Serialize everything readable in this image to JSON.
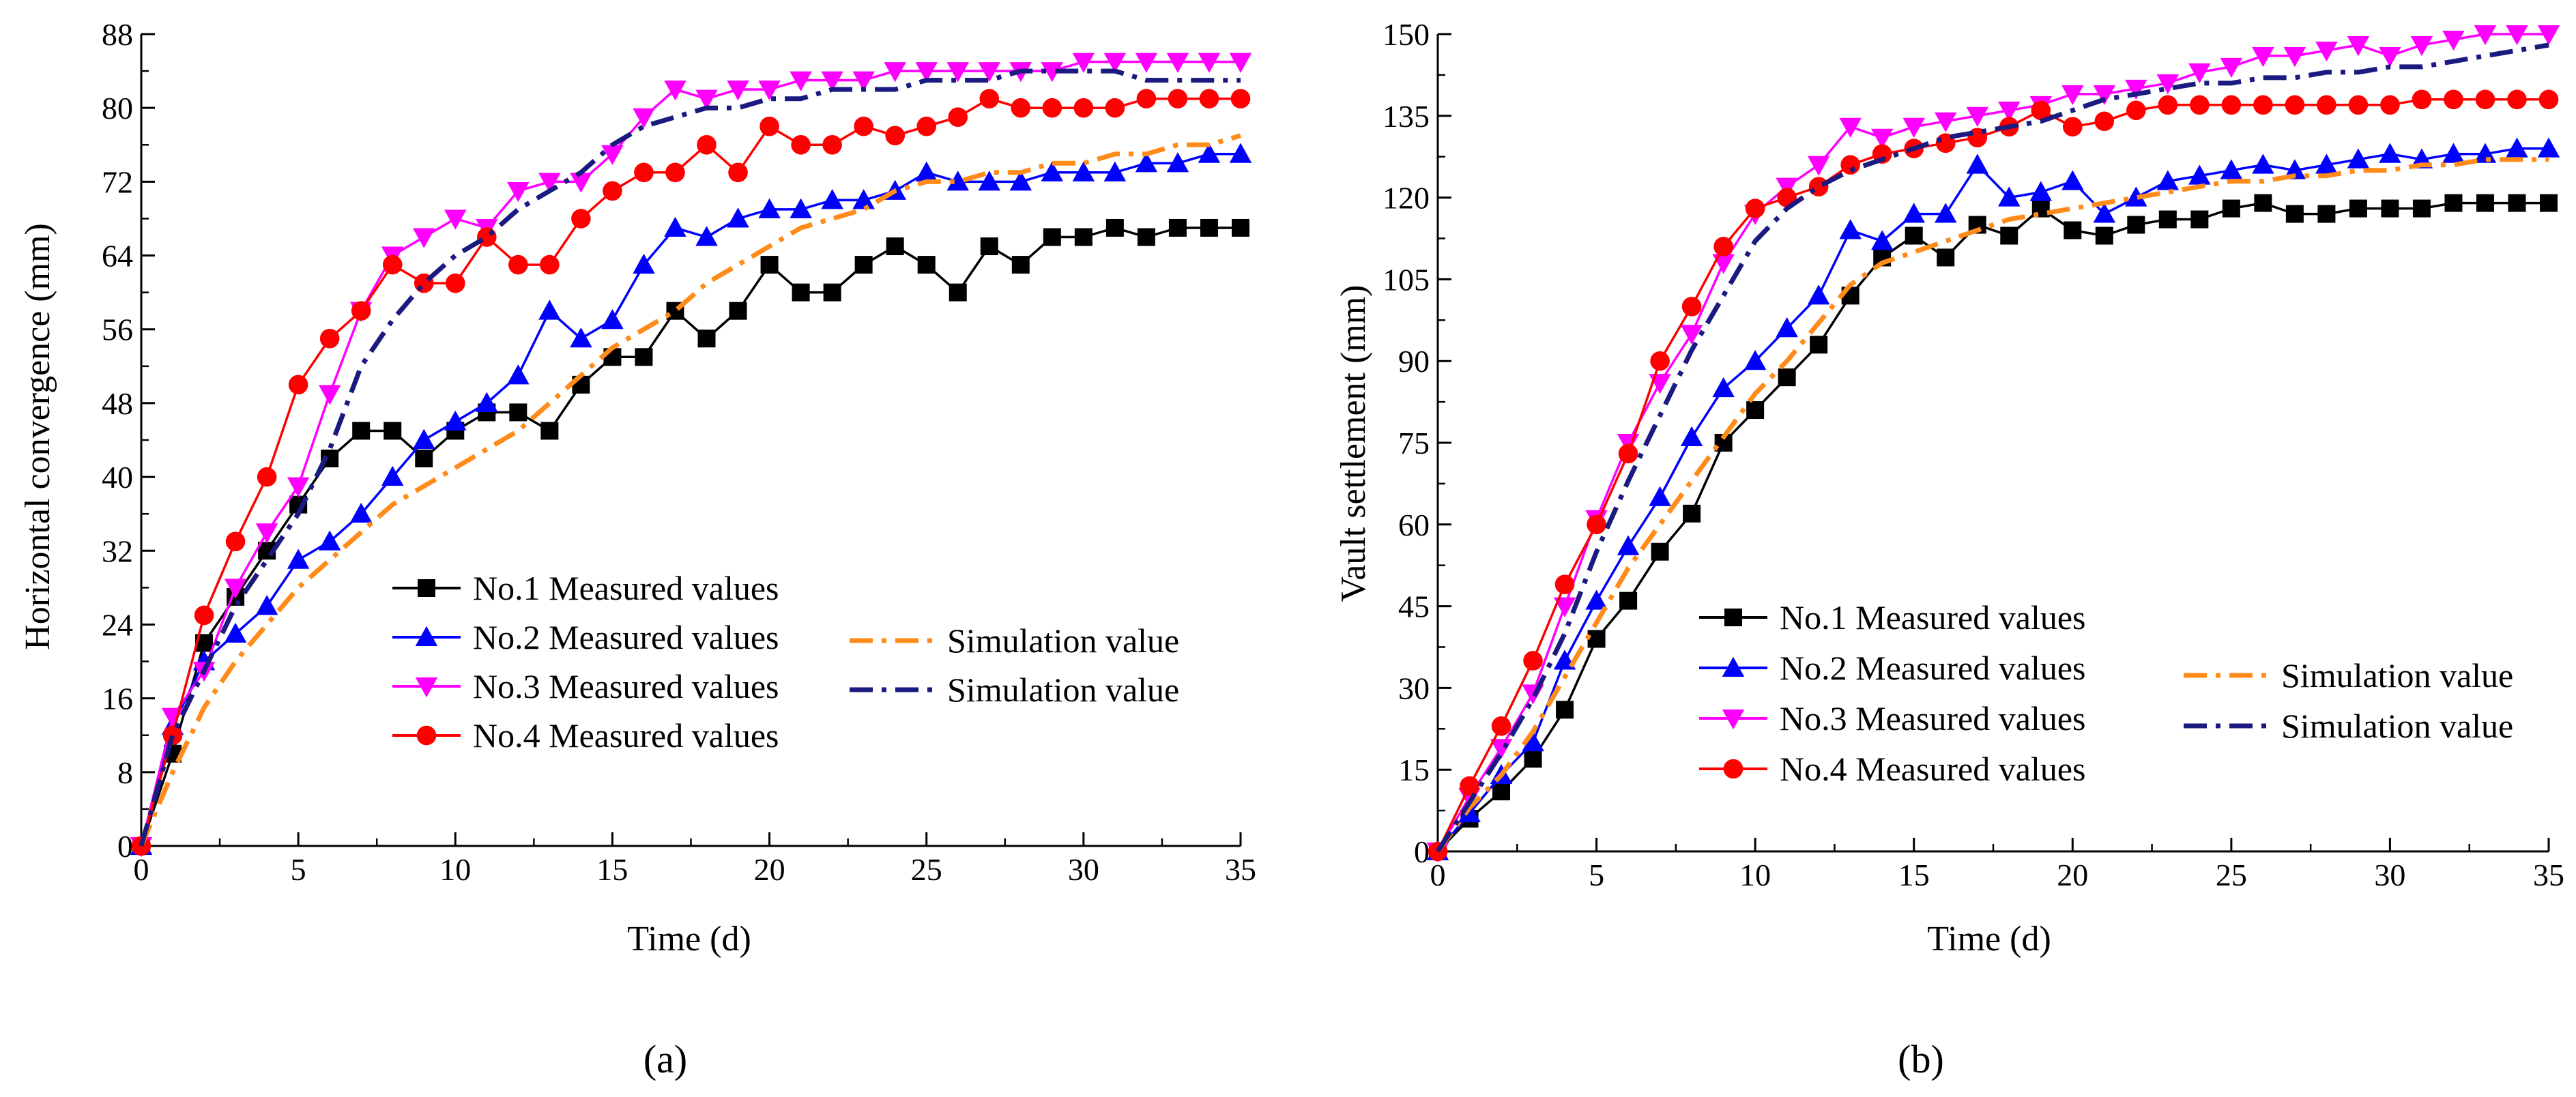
{
  "chart_data": [
    {
      "type": "line",
      "panel_label": "(a)",
      "xlabel": "Time (d)",
      "ylabel": "Horizontal convergence (mm)",
      "xlim": [
        0,
        35
      ],
      "ylim": [
        0,
        88
      ],
      "xticks": [
        0,
        5,
        10,
        15,
        20,
        25,
        30,
        35
      ],
      "yticks": [
        0,
        8,
        16,
        24,
        32,
        40,
        48,
        56,
        64,
        72,
        80,
        88
      ],
      "grid": false,
      "series": [
        {
          "name": "No.1  Measured values",
          "color": "#000000",
          "marker": "square",
          "dash": "solid",
          "x": [
            0,
            1,
            2,
            3,
            4,
            5,
            6,
            7,
            8,
            9,
            10,
            11,
            12,
            13,
            14,
            15,
            16,
            17,
            18,
            19,
            20,
            21,
            22,
            23,
            24,
            25,
            26,
            27,
            28,
            29,
            30,
            31,
            32,
            33,
            34,
            35
          ],
          "y": [
            0,
            10,
            22,
            27,
            32,
            37,
            42,
            45,
            45,
            42,
            45,
            47,
            47,
            45,
            50,
            53,
            53,
            58,
            55,
            58,
            63,
            60,
            60,
            63,
            65,
            63,
            60,
            65,
            63,
            66,
            66,
            67,
            66,
            67,
            67,
            67
          ]
        },
        {
          "name": "No.2  Measured values",
          "color": "#0000ff",
          "marker": "triangle-up",
          "dash": "solid",
          "x": [
            0,
            1,
            2,
            3,
            4,
            5,
            6,
            7,
            8,
            9,
            10,
            11,
            12,
            13,
            14,
            15,
            16,
            17,
            18,
            19,
            20,
            21,
            22,
            23,
            24,
            25,
            26,
            27,
            28,
            29,
            30,
            31,
            32,
            33,
            34,
            35
          ],
          "y": [
            0,
            13,
            20,
            23,
            26,
            31,
            33,
            36,
            40,
            44,
            46,
            48,
            51,
            58,
            55,
            57,
            63,
            67,
            66,
            68,
            69,
            69,
            70,
            70,
            71,
            73,
            72,
            72,
            72,
            73,
            73,
            73,
            74,
            74,
            75,
            75
          ]
        },
        {
          "name": "No.3  Measured values",
          "color": "#ff00ff",
          "marker": "triangle-down",
          "dash": "solid",
          "x": [
            0,
            1,
            2,
            3,
            4,
            5,
            6,
            7,
            8,
            9,
            10,
            11,
            12,
            13,
            14,
            15,
            16,
            17,
            18,
            19,
            20,
            21,
            22,
            23,
            24,
            25,
            26,
            27,
            28,
            29,
            30,
            31,
            32,
            33,
            34,
            35
          ],
          "y": [
            0,
            14,
            19,
            28,
            34,
            39,
            49,
            58,
            64,
            66,
            68,
            67,
            71,
            72,
            72,
            75,
            79,
            82,
            81,
            82,
            82,
            83,
            83,
            83,
            84,
            84,
            84,
            84,
            84,
            84,
            85,
            85,
            85,
            85,
            85,
            85
          ]
        },
        {
          "name": "No.4  Measured values",
          "color": "#ff0000",
          "marker": "circle",
          "dash": "solid",
          "x": [
            0,
            1,
            2,
            3,
            4,
            5,
            6,
            7,
            8,
            9,
            10,
            11,
            12,
            13,
            14,
            15,
            16,
            17,
            18,
            19,
            20,
            21,
            22,
            23,
            24,
            25,
            26,
            27,
            28,
            29,
            30,
            31,
            32,
            33,
            34,
            35
          ],
          "y": [
            0,
            12,
            25,
            33,
            40,
            50,
            55,
            58,
            63,
            61,
            61,
            66,
            63,
            63,
            68,
            71,
            73,
            73,
            76,
            73,
            78,
            76,
            76,
            78,
            77,
            78,
            79,
            81,
            80,
            80,
            80,
            80,
            81,
            81,
            81,
            81
          ]
        },
        {
          "name": "Simulation value",
          "color": "#ff8c1a",
          "marker": "none",
          "dash": "dashdot",
          "x": [
            0,
            1,
            2,
            3,
            4,
            5,
            6,
            7,
            8,
            9,
            10,
            11,
            12,
            13,
            14,
            15,
            16,
            17,
            18,
            19,
            20,
            21,
            22,
            23,
            24,
            25,
            26,
            27,
            28,
            29,
            30,
            31,
            32,
            33,
            34,
            35
          ],
          "y": [
            0,
            8,
            15,
            20,
            24,
            28,
            31,
            34,
            37,
            39,
            41,
            43,
            45,
            48,
            51,
            54,
            56,
            58,
            61,
            63,
            65,
            67,
            68,
            69,
            71,
            72,
            72,
            73,
            73,
            74,
            74,
            75,
            75,
            76,
            76,
            77
          ]
        },
        {
          "name": "Simulation value",
          "color": "#1a1a80",
          "marker": "none",
          "dash": "dashdot",
          "x": [
            0,
            1,
            2,
            3,
            4,
            5,
            6,
            7,
            8,
            9,
            10,
            11,
            12,
            13,
            14,
            15,
            16,
            17,
            18,
            19,
            20,
            21,
            22,
            23,
            24,
            25,
            26,
            27,
            28,
            29,
            30,
            31,
            32,
            33,
            34,
            35
          ],
          "y": [
            0,
            12,
            19,
            26,
            31,
            36,
            43,
            52,
            57,
            61,
            64,
            66,
            69,
            71,
            73,
            76,
            78,
            79,
            80,
            80,
            81,
            81,
            82,
            82,
            82,
            83,
            83,
            83,
            84,
            84,
            84,
            84,
            83,
            83,
            83,
            83
          ]
        }
      ],
      "legend": {
        "left_column": [
          "No.1  Measured values",
          "No.2  Measured values",
          "No.3  Measured values",
          "No.4  Measured values"
        ],
        "right_column": [
          "Simulation value",
          "Simulation value"
        ]
      }
    },
    {
      "type": "line",
      "panel_label": "(b)",
      "xlabel": "Time (d)",
      "ylabel": "Vault settlement (mm)",
      "xlim": [
        0,
        35
      ],
      "ylim": [
        0,
        150
      ],
      "xticks": [
        0,
        5,
        10,
        15,
        20,
        25,
        30,
        35
      ],
      "yticks": [
        0,
        15,
        30,
        45,
        60,
        75,
        90,
        105,
        120,
        135,
        150
      ],
      "grid": false,
      "series": [
        {
          "name": "No.1  Measured values",
          "color": "#000000",
          "marker": "square",
          "dash": "solid",
          "x": [
            0,
            1,
            2,
            3,
            4,
            5,
            6,
            7,
            8,
            9,
            10,
            11,
            12,
            13,
            14,
            15,
            16,
            17,
            18,
            19,
            20,
            21,
            22,
            23,
            24,
            25,
            26,
            27,
            28,
            29,
            30,
            31,
            32,
            33,
            34,
            35
          ],
          "y": [
            0,
            6,
            11,
            17,
            26,
            39,
            46,
            55,
            62,
            75,
            81,
            87,
            93,
            102,
            109,
            113,
            109,
            115,
            113,
            118,
            114,
            113,
            115,
            116,
            116,
            118,
            119,
            117,
            117,
            118,
            118,
            118,
            119,
            119,
            119,
            119
          ]
        },
        {
          "name": "No.2  Measured values",
          "color": "#0000ff",
          "marker": "triangle-up",
          "dash": "solid",
          "x": [
            0,
            1,
            2,
            3,
            4,
            5,
            6,
            7,
            8,
            9,
            10,
            11,
            12,
            13,
            14,
            15,
            16,
            17,
            18,
            19,
            20,
            21,
            22,
            23,
            24,
            25,
            26,
            27,
            28,
            29,
            30,
            31,
            32,
            33,
            34,
            35
          ],
          "y": [
            0,
            7,
            14,
            20,
            35,
            46,
            56,
            65,
            76,
            85,
            90,
            96,
            102,
            114,
            112,
            117,
            117,
            126,
            120,
            121,
            123,
            117,
            120,
            123,
            124,
            125,
            126,
            125,
            126,
            127,
            128,
            127,
            128,
            128,
            129,
            129
          ]
        },
        {
          "name": "No.3  Measured values",
          "color": "#ff00ff",
          "marker": "triangle-down",
          "dash": "solid",
          "x": [
            0,
            1,
            2,
            3,
            4,
            5,
            6,
            7,
            8,
            9,
            10,
            11,
            12,
            13,
            14,
            15,
            16,
            17,
            18,
            19,
            20,
            21,
            22,
            23,
            24,
            25,
            26,
            27,
            28,
            29,
            30,
            31,
            32,
            33,
            34,
            35
          ],
          "y": [
            0,
            10,
            19,
            29,
            45,
            61,
            75,
            86,
            95,
            108,
            117,
            122,
            126,
            133,
            131,
            133,
            134,
            135,
            136,
            137,
            139,
            139,
            140,
            141,
            143,
            144,
            146,
            146,
            147,
            148,
            146,
            148,
            149,
            150,
            150,
            150
          ]
        },
        {
          "name": "No.4  Measured values",
          "color": "#ff0000",
          "marker": "circle",
          "dash": "solid",
          "x": [
            0,
            1,
            2,
            3,
            4,
            5,
            6,
            7,
            8,
            9,
            10,
            11,
            12,
            13,
            14,
            15,
            16,
            17,
            18,
            19,
            20,
            21,
            22,
            23,
            24,
            25,
            26,
            27,
            28,
            29,
            30,
            31,
            32,
            33,
            34,
            35
          ],
          "y": [
            0,
            12,
            23,
            35,
            49,
            60,
            73,
            90,
            100,
            111,
            118,
            120,
            122,
            126,
            128,
            129,
            130,
            131,
            133,
            136,
            133,
            134,
            136,
            137,
            137,
            137,
            137,
            137,
            137,
            137,
            137,
            138,
            138,
            138,
            138,
            138
          ]
        },
        {
          "name": "Simulation value",
          "color": "#ff8c1a",
          "marker": "none",
          "dash": "dashdot",
          "x": [
            0,
            1,
            2,
            3,
            4,
            5,
            6,
            7,
            8,
            9,
            10,
            11,
            12,
            13,
            14,
            15,
            16,
            17,
            18,
            19,
            20,
            21,
            22,
            23,
            24,
            25,
            26,
            27,
            28,
            29,
            30,
            31,
            32,
            33,
            34,
            35
          ],
          "y": [
            0,
            8,
            14,
            22,
            32,
            42,
            52,
            60,
            68,
            76,
            84,
            90,
            97,
            104,
            108,
            110,
            112,
            114,
            116,
            117,
            118,
            119,
            120,
            121,
            122,
            123,
            123,
            124,
            124,
            125,
            125,
            126,
            126,
            127,
            127,
            127
          ]
        },
        {
          "name": "Simulation value",
          "color": "#1a1a80",
          "marker": "none",
          "dash": "dashdot",
          "x": [
            0,
            1,
            2,
            3,
            4,
            5,
            6,
            7,
            8,
            9,
            10,
            11,
            12,
            13,
            14,
            15,
            16,
            17,
            18,
            19,
            20,
            21,
            22,
            23,
            24,
            25,
            26,
            27,
            28,
            29,
            30,
            31,
            32,
            33,
            34,
            35
          ],
          "y": [
            0,
            9,
            18,
            28,
            40,
            55,
            68,
            80,
            92,
            102,
            112,
            118,
            122,
            125,
            127,
            129,
            131,
            132,
            133,
            134,
            136,
            138,
            139,
            140,
            141,
            141,
            142,
            142,
            143,
            143,
            144,
            144,
            145,
            146,
            147,
            148
          ]
        }
      ],
      "legend": {
        "left_column": [
          "No.1  Measured values",
          "No.2  Measured values",
          "No.3  Measured values",
          "No.4  Measured values"
        ],
        "right_column": [
          "Simulation value",
          "Simulation value"
        ]
      }
    }
  ]
}
